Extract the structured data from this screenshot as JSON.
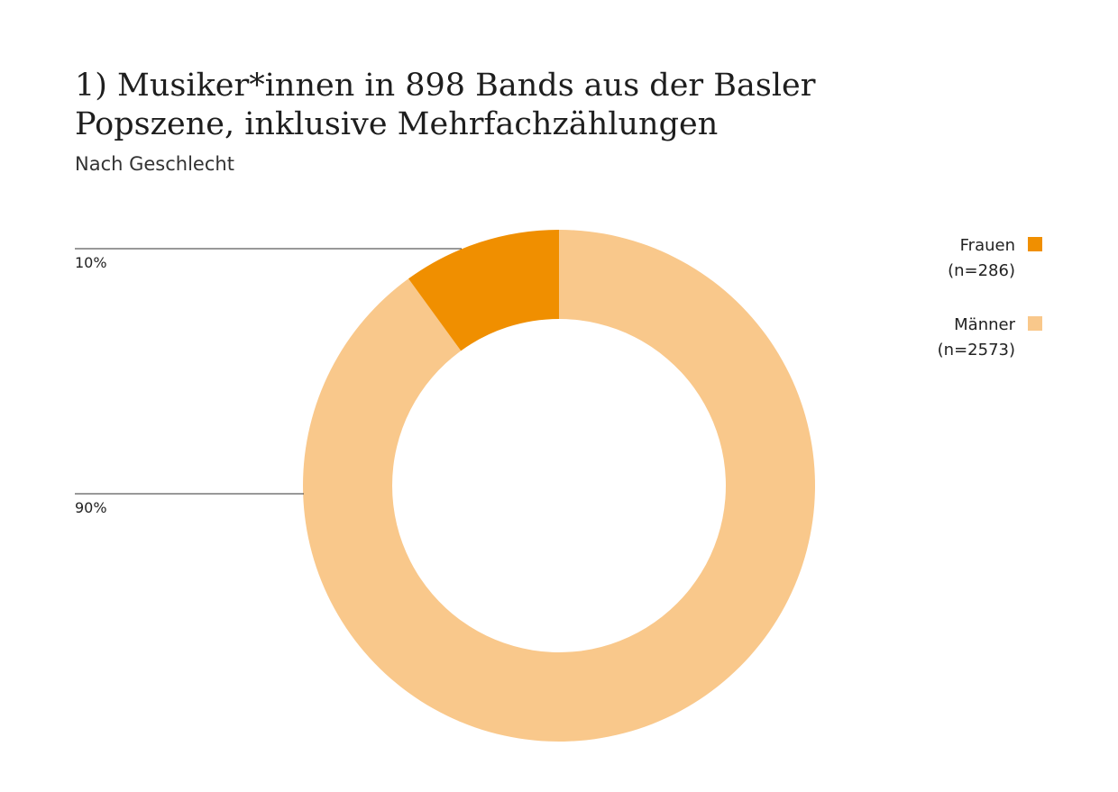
{
  "chart_data": {
    "type": "pie",
    "donut": true,
    "title": "1) Musiker*innen in 898 Bands aus der Basler Popszene, inklusive Mehrfachzählungen",
    "title_lines": [
      "1) Musiker*innen in 898 Bands aus der Basler",
      "Popszene, inklusive Mehrfachzählungen"
    ],
    "subtitle": "Nach Geschlecht",
    "legend_position": "top-right",
    "slices": [
      {
        "name": "Frauen",
        "count_label": "(n=286)",
        "value": 286,
        "percent_label": "10%",
        "color": "#F08F00"
      },
      {
        "name": "Männer",
        "count_label": "(n=2573)",
        "value": 2573,
        "percent_label": "90%",
        "color": "#F9C88B"
      }
    ]
  }
}
